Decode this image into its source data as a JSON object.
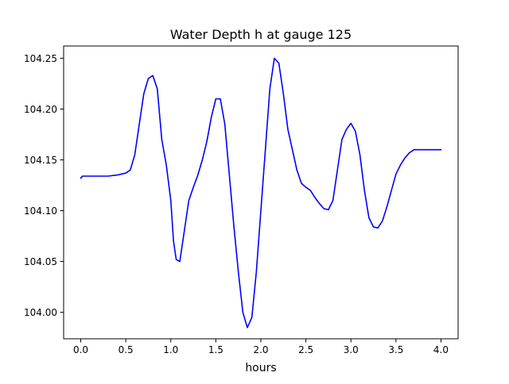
{
  "chart_data": {
    "type": "line",
    "title": "Water Depth h at gauge 125",
    "xlabel": "hours",
    "ylabel": "",
    "xlim": [
      -0.19,
      4.19
    ],
    "ylim": [
      103.974,
      104.262
    ],
    "xticks": [
      0.0,
      0.5,
      1.0,
      1.5,
      2.0,
      2.5,
      3.0,
      3.5,
      4.0
    ],
    "xtick_labels": [
      "0.0",
      "0.5",
      "1.0",
      "1.5",
      "2.0",
      "2.5",
      "3.0",
      "3.5",
      "4.0"
    ],
    "yticks": [
      104.0,
      104.05,
      104.1,
      104.15,
      104.2,
      104.25
    ],
    "ytick_labels": [
      "104.00",
      "104.05",
      "104.10",
      "104.15",
      "104.20",
      "104.25"
    ],
    "grid": false,
    "legend": false,
    "series": [
      {
        "color": "#0000ff",
        "x": [
          0.0,
          0.02,
          0.1,
          0.2,
          0.3,
          0.4,
          0.5,
          0.55,
          0.6,
          0.65,
          0.7,
          0.75,
          0.8,
          0.85,
          0.9,
          0.95,
          1.0,
          1.03,
          1.06,
          1.1,
          1.15,
          1.2,
          1.25,
          1.3,
          1.35,
          1.4,
          1.45,
          1.5,
          1.55,
          1.6,
          1.65,
          1.7,
          1.75,
          1.8,
          1.85,
          1.9,
          1.95,
          2.0,
          2.05,
          2.1,
          2.15,
          2.2,
          2.25,
          2.3,
          2.35,
          2.4,
          2.45,
          2.5,
          2.55,
          2.6,
          2.65,
          2.7,
          2.75,
          2.8,
          2.85,
          2.9,
          2.95,
          3.0,
          3.05,
          3.1,
          3.15,
          3.2,
          3.25,
          3.3,
          3.35,
          3.4,
          3.45,
          3.5,
          3.55,
          3.6,
          3.65,
          3.7,
          3.75,
          3.8,
          3.85,
          3.9,
          3.95,
          4.0
        ],
        "y": [
          104.132,
          104.134,
          104.134,
          104.134,
          104.134,
          104.135,
          104.137,
          104.14,
          104.155,
          104.185,
          104.215,
          104.23,
          104.233,
          104.22,
          104.17,
          104.145,
          104.11,
          104.07,
          104.052,
          104.05,
          104.08,
          104.11,
          104.123,
          104.135,
          104.15,
          104.168,
          104.192,
          104.21,
          104.21,
          104.185,
          104.135,
          104.085,
          104.04,
          104.0,
          103.985,
          103.995,
          104.04,
          104.1,
          104.16,
          104.22,
          104.25,
          104.245,
          104.215,
          104.18,
          104.16,
          104.14,
          104.127,
          104.123,
          104.12,
          104.113,
          104.107,
          104.102,
          104.101,
          104.11,
          104.14,
          104.17,
          104.18,
          104.186,
          104.178,
          104.155,
          104.12,
          104.093,
          104.084,
          104.083,
          104.09,
          104.104,
          104.12,
          104.136,
          104.145,
          104.152,
          104.157,
          104.16,
          104.16,
          104.16,
          104.16,
          104.16,
          104.16,
          104.16
        ]
      }
    ]
  }
}
